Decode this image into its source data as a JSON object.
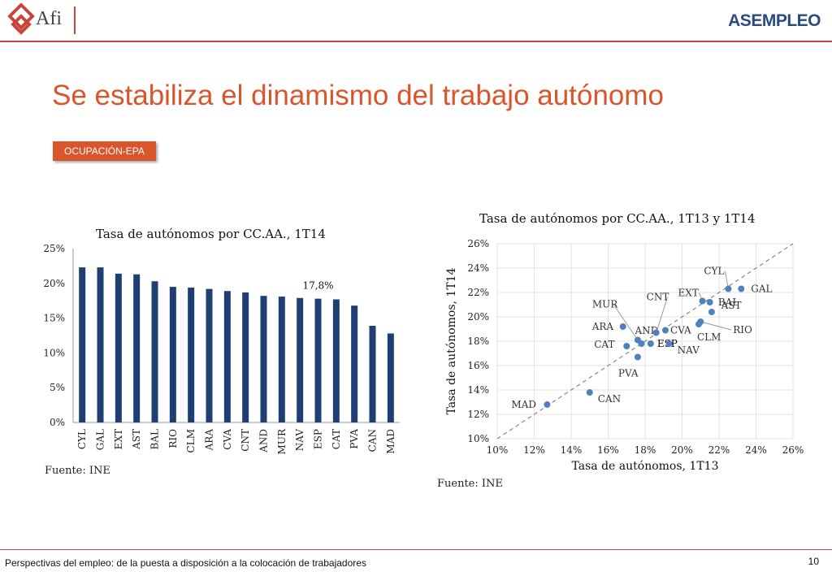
{
  "header": {
    "logo_left": "Afi",
    "logo_right": "ASEMPLEO"
  },
  "slide": {
    "title": "Se estabiliza el dinamismo del trabajo autónomo",
    "badge": "OCUPACIÓN-EPA",
    "footer": "Perspectivas del empleo: de la puesta a disposición a la colocación de trabajadores",
    "page_number": "10"
  },
  "colors": {
    "bar": "#1f3f73",
    "point": "#4f81bd",
    "accent": "#d9552b",
    "rule": "#c9443a"
  },
  "chart_data": [
    {
      "type": "bar",
      "title": "Tasa de autónomos por CC.AA., 1T14",
      "source": "Fuente: INE",
      "categories": [
        "CYL",
        "GAL",
        "EXT",
        "AST",
        "BAL",
        "RIO",
        "CLM",
        "ARA",
        "CVA",
        "CNT",
        "AND",
        "MUR",
        "NAV",
        "ESP",
        "CAT",
        "PVA",
        "CAN",
        "MAD"
      ],
      "values": [
        22.3,
        22.3,
        21.4,
        21.3,
        20.3,
        19.5,
        19.4,
        19.2,
        18.9,
        18.7,
        18.2,
        18.1,
        17.9,
        17.8,
        17.7,
        16.8,
        13.9,
        12.8
      ],
      "data_labels": [
        {
          "category": "ESP",
          "text": "17,8%"
        }
      ],
      "ylim": [
        0,
        25
      ],
      "yticks": [
        "0%",
        "5%",
        "10%",
        "15%",
        "20%",
        "25%"
      ],
      "grid": false
    },
    {
      "type": "scatter",
      "title": "Tasa de autónomos por CC.AA., 1T13 y 1T14",
      "source": "Fuente: INE",
      "xlabel": "Tasa de autónomos, 1T13",
      "ylabel": "Tasa de autónomos, 1T14",
      "xlim": [
        10,
        26
      ],
      "ylim": [
        10,
        26
      ],
      "xticks": [
        "10%",
        "12%",
        "14%",
        "16%",
        "18%",
        "20%",
        "22%",
        "24%",
        "26%"
      ],
      "yticks": [
        "10%",
        "12%",
        "14%",
        "16%",
        "18%",
        "20%",
        "22%",
        "24%",
        "26%"
      ],
      "diagonal": true,
      "points": [
        {
          "label": "MAD",
          "x": 12.7,
          "y": 12.8
        },
        {
          "label": "CAN",
          "x": 15.0,
          "y": 13.8
        },
        {
          "label": "PVA",
          "x": 17.6,
          "y": 16.7
        },
        {
          "label": "ESP",
          "x": 18.3,
          "y": 17.8
        },
        {
          "label": "CAT",
          "x": 17.0,
          "y": 17.6
        },
        {
          "label": "ARA",
          "x": 16.8,
          "y": 19.2
        },
        {
          "label": "MUR",
          "x": 17.6,
          "y": 18.1
        },
        {
          "label": "AND",
          "x": 17.8,
          "y": 17.8
        },
        {
          "label": "CNT",
          "x": 18.6,
          "y": 18.7
        },
        {
          "label": "CVA",
          "x": 19.1,
          "y": 18.9
        },
        {
          "label": "NAV",
          "x": 19.3,
          "y": 17.8
        },
        {
          "label": "CLM",
          "x": 20.9,
          "y": 19.4
        },
        {
          "label": "RIO",
          "x": 21.0,
          "y": 19.6
        },
        {
          "label": "BAL",
          "x": 21.6,
          "y": 20.4
        },
        {
          "label": "EXT",
          "x": 21.1,
          "y": 21.3
        },
        {
          "label": "AST",
          "x": 21.5,
          "y": 21.2
        },
        {
          "label": "CYL",
          "x": 22.5,
          "y": 22.3
        },
        {
          "label": "GAL",
          "x": 23.2,
          "y": 22.3
        }
      ],
      "grid": true
    }
  ]
}
